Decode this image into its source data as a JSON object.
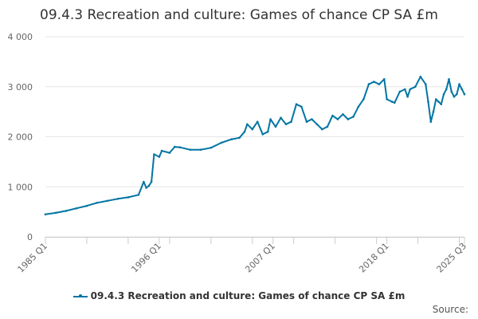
{
  "chart_data": {
    "type": "line",
    "title": "09.4.3 Recreation and culture: Games of chance CP SA £m",
    "xlabel": "",
    "ylabel": "",
    "ylim": [
      0,
      4000
    ],
    "y_ticks": [
      0,
      1000,
      2000,
      3000,
      4000
    ],
    "y_tick_labels": [
      "0",
      "1 000",
      "2 000",
      "3 000",
      "4 000"
    ],
    "x_range": [
      "1985 Q1",
      "2025 Q3"
    ],
    "x_tick_labels": [
      "1985 Q1",
      "1996 Q1",
      "2007 Q1",
      "2018 Q1",
      "2025 Q3"
    ],
    "grid": "horizontal",
    "legend_position": "bottom",
    "color": "#0075a3",
    "series": [
      {
        "name": "09.4.3 Recreation and culture: Games of chance CP SA £m",
        "points": [
          [
            "1985 Q1",
            450
          ],
          [
            "1986 Q1",
            480
          ],
          [
            "1987 Q1",
            520
          ],
          [
            "1988 Q1",
            570
          ],
          [
            "1989 Q1",
            620
          ],
          [
            "1990 Q1",
            680
          ],
          [
            "1991 Q1",
            720
          ],
          [
            "1992 Q1",
            760
          ],
          [
            "1993 Q1",
            790
          ],
          [
            "1994 Q1",
            840
          ],
          [
            "1994 Q3",
            1100
          ],
          [
            "1994 Q4",
            980
          ],
          [
            "1995 Q1",
            1020
          ],
          [
            "1995 Q2",
            1100
          ],
          [
            "1995 Q3",
            1650
          ],
          [
            "1996 Q1",
            1600
          ],
          [
            "1996 Q2",
            1720
          ],
          [
            "1997 Q1",
            1680
          ],
          [
            "1997 Q3",
            1800
          ],
          [
            "1998 Q1",
            1790
          ],
          [
            "1999 Q1",
            1740
          ],
          [
            "2000 Q1",
            1740
          ],
          [
            "2001 Q1",
            1780
          ],
          [
            "2002 Q1",
            1880
          ],
          [
            "2003 Q1",
            1950
          ],
          [
            "2003 Q4",
            1980
          ],
          [
            "2004 Q2",
            2100
          ],
          [
            "2004 Q3",
            2250
          ],
          [
            "2005 Q1",
            2150
          ],
          [
            "2005 Q3",
            2300
          ],
          [
            "2006 Q1",
            2050
          ],
          [
            "2006 Q3",
            2100
          ],
          [
            "2006 Q4",
            2350
          ],
          [
            "2007 Q2",
            2200
          ],
          [
            "2007 Q4",
            2380
          ],
          [
            "2008 Q2",
            2250
          ],
          [
            "2008 Q4",
            2300
          ],
          [
            "2009 Q2",
            2650
          ],
          [
            "2009 Q4",
            2600
          ],
          [
            "2010 Q2",
            2300
          ],
          [
            "2010 Q4",
            2350
          ],
          [
            "2011 Q2",
            2250
          ],
          [
            "2011 Q4",
            2150
          ],
          [
            "2012 Q2",
            2200
          ],
          [
            "2012 Q4",
            2420
          ],
          [
            "2013 Q2",
            2350
          ],
          [
            "2013 Q4",
            2450
          ],
          [
            "2014 Q2",
            2350
          ],
          [
            "2014 Q4",
            2400
          ],
          [
            "2015 Q2",
            2600
          ],
          [
            "2015 Q4",
            2750
          ],
          [
            "2016 Q2",
            3050
          ],
          [
            "2016 Q4",
            3100
          ],
          [
            "2017 Q2",
            3050
          ],
          [
            "2017 Q4",
            3150
          ],
          [
            "2018 Q1",
            2750
          ],
          [
            "2018 Q3",
            2700
          ],
          [
            "2018 Q4",
            2680
          ],
          [
            "2019 Q2",
            2900
          ],
          [
            "2019 Q4",
            2950
          ],
          [
            "2020 Q1",
            2800
          ],
          [
            "2020 Q2",
            2950
          ],
          [
            "2020 Q4",
            3000
          ],
          [
            "2021 Q2",
            3200
          ],
          [
            "2021 Q4",
            3050
          ],
          [
            "2022 Q1",
            2700
          ],
          [
            "2022 Q2",
            2300
          ],
          [
            "2022 Q3",
            2500
          ],
          [
            "2022 Q4",
            2750
          ],
          [
            "2023 Q1",
            2700
          ],
          [
            "2023 Q2",
            2650
          ],
          [
            "2023 Q3",
            2850
          ],
          [
            "2023 Q4",
            2950
          ],
          [
            "2024 Q1",
            3150
          ],
          [
            "2024 Q2",
            2900
          ],
          [
            "2024 Q3",
            2800
          ],
          [
            "2024 Q4",
            2850
          ],
          [
            "2025 Q1",
            3050
          ],
          [
            "2025 Q2",
            2950
          ],
          [
            "2025 Q3",
            2850
          ]
        ]
      }
    ]
  },
  "source_label": "Source:"
}
